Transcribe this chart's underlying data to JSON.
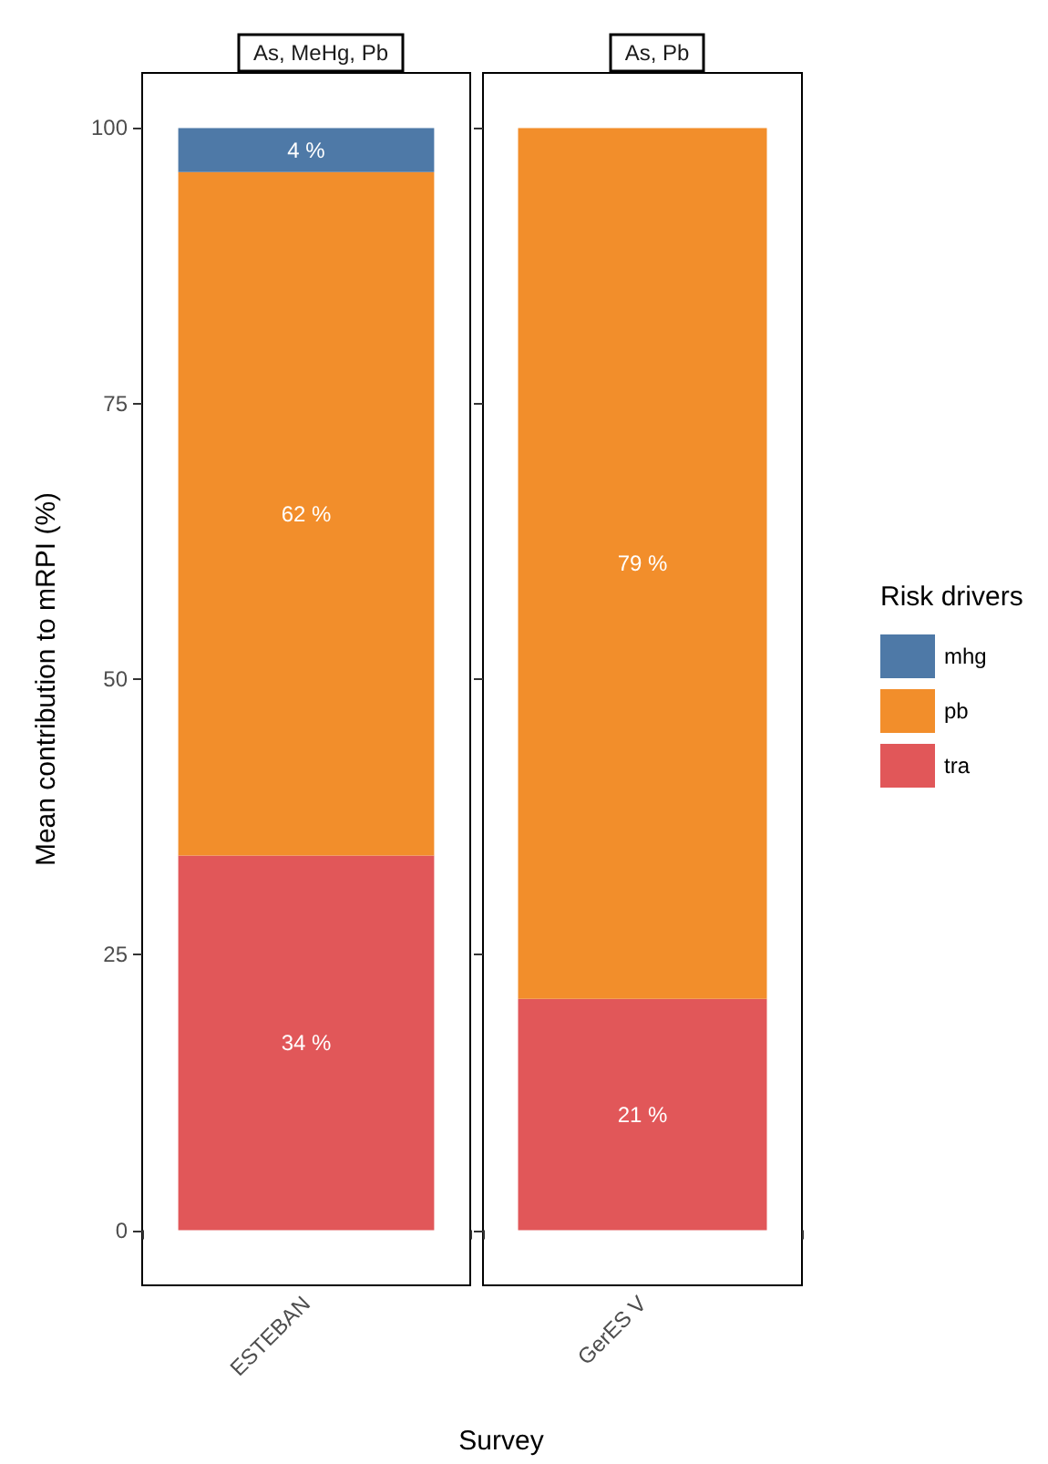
{
  "chart_data": [
    {
      "type": "bar",
      "title": "As, MeHg, Pb",
      "xlabel": "Survey",
      "ylabel": "Mean contribution to mRPI (%)",
      "categories": [
        "ESTEBAN"
      ],
      "stacked": true,
      "ylim": [
        -5,
        105
      ],
      "yticks": [
        0,
        25,
        50,
        75,
        100
      ],
      "grid": false,
      "legend": false,
      "series": [
        {
          "color": "#e15759",
          "values": [
            34
          ],
          "value_labels": [
            "34 %"
          ]
        },
        {
          "color": "#f28e2b",
          "values": [
            62
          ],
          "value_labels": [
            "62 %"
          ]
        },
        {
          "color": "#4e79a7",
          "values": [
            4
          ],
          "value_labels": [
            "4 %"
          ]
        }
      ]
    },
    {
      "type": "bar",
      "title": "As, Pb",
      "categories": [
        "GerES V"
      ],
      "stacked": true,
      "ylim": [
        -5,
        105
      ],
      "yticks": [
        0,
        25,
        50,
        75,
        100
      ],
      "tick_labels": "x",
      "grid": false,
      "legend": "right",
      "legend_title": "Risk drivers",
      "series": [
        {
          "name": "tra",
          "color": "#e15759",
          "values": [
            21
          ],
          "value_labels": [
            "21 %"
          ]
        },
        {
          "name": "pb",
          "color": "#f28e2b",
          "values": [
            79
          ],
          "value_labels": [
            "79 %"
          ]
        },
        {
          "name": "mhg",
          "color": "#4e79a7",
          "values": [
            null
          ],
          "value_labels": [
            null
          ]
        }
      ]
    }
  ]
}
